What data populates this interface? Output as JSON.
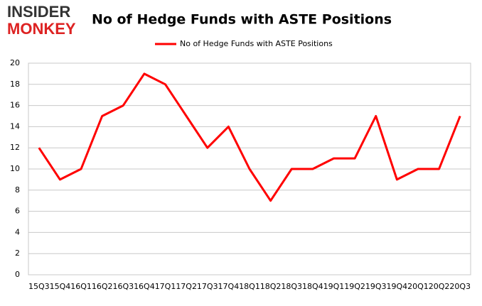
{
  "logo": {
    "line1": "INSIDER",
    "line2": "MONKEY"
  },
  "chart_data": {
    "type": "line",
    "title": "No of Hedge Funds with ASTE Positions",
    "categories": [
      "15Q3",
      "15Q4",
      "16Q1",
      "16Q2",
      "16Q3",
      "16Q4",
      "17Q1",
      "17Q2",
      "17Q3",
      "17Q4",
      "18Q1",
      "18Q2",
      "18Q3",
      "18Q4",
      "19Q1",
      "19Q2",
      "19Q3",
      "19Q4",
      "20Q1",
      "20Q2",
      "20Q3"
    ],
    "series": [
      {
        "name": "No of Hedge Funds with ASTE Positions",
        "color": "#ff0000",
        "values": [
          12,
          9,
          10,
          15,
          16,
          19,
          18,
          15,
          12,
          14,
          10,
          7,
          10,
          10,
          11,
          11,
          15,
          9,
          10,
          10,
          15
        ]
      }
    ],
    "ylim": [
      0,
      20
    ],
    "yticks": [
      0,
      2,
      4,
      6,
      8,
      10,
      12,
      14,
      16,
      18,
      20
    ],
    "grid": true,
    "legend": "top"
  }
}
